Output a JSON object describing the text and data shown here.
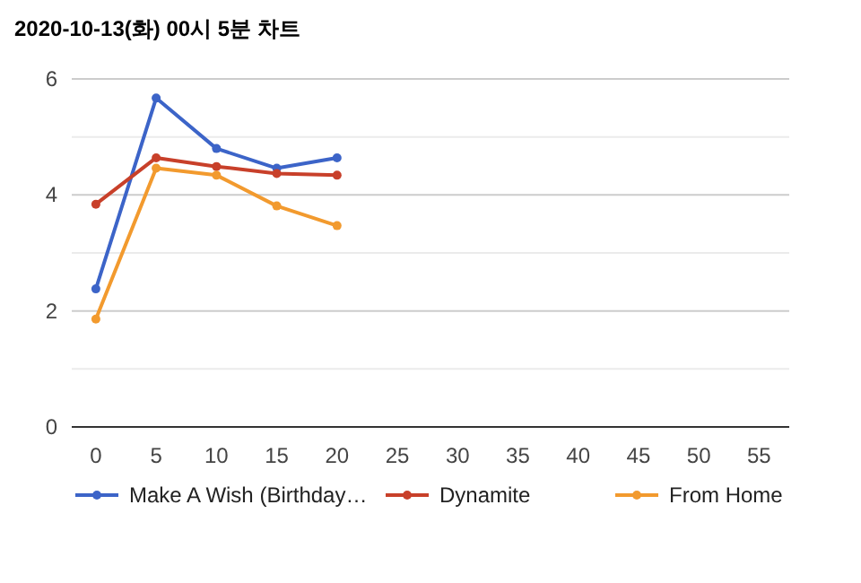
{
  "chart_data": {
    "type": "line",
    "title": "2020-10-13(화) 00시 5분 차트",
    "x": [
      0,
      5,
      10,
      15,
      20
    ],
    "series": [
      {
        "name": "Make A Wish (Birthday…",
        "color": "#3c64c8",
        "values": [
          2.38,
          5.67,
          4.8,
          4.46,
          4.64
        ]
      },
      {
        "name": "Dynamite",
        "color": "#c8402a",
        "values": [
          3.84,
          4.64,
          4.49,
          4.37,
          4.34
        ]
      },
      {
        "name": "From Home",
        "color": "#f29a2e",
        "values": [
          1.86,
          4.46,
          4.34,
          3.81,
          3.47
        ]
      }
    ],
    "xlim": [
      -2,
      57.5
    ],
    "xticks": [
      0,
      5,
      10,
      15,
      20,
      25,
      30,
      35,
      40,
      45,
      50,
      55
    ],
    "ylim": [
      0,
      6
    ],
    "yticks": [
      0,
      2,
      4,
      6
    ],
    "grid": "y",
    "legend": "bottom",
    "marker": "circle",
    "line_style": "solid"
  }
}
